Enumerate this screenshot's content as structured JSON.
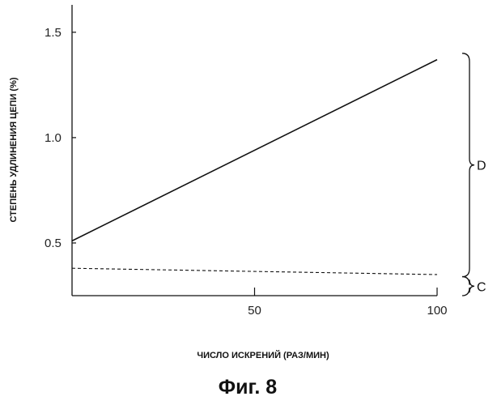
{
  "chart_data": {
    "type": "line",
    "caption": "Фиг. 8",
    "xlabel": "ЧИСЛО ИСКРЕНИЙ (РАЗ/МИН)",
    "ylabel": "СТЕПЕНЬ УДЛИНЕНИЯ ЦЕПИ (%)",
    "xlim": [
      0,
      100
    ],
    "ylim": [
      0.25,
      1.63
    ],
    "x_ticks": [
      50,
      100
    ],
    "x_tick_labels": [
      "50",
      "100"
    ],
    "y_ticks": [
      0.5,
      1.0,
      1.5
    ],
    "y_tick_labels": [
      "0.5",
      "1.0",
      "1.5"
    ],
    "grid": false,
    "series": [
      {
        "name": "D",
        "style": "solid",
        "x": [
          0,
          100
        ],
        "y": [
          0.51,
          1.37
        ]
      },
      {
        "name": "C",
        "style": "dashed",
        "x": [
          0,
          100
        ],
        "y": [
          0.38,
          0.35
        ]
      }
    ],
    "brackets": [
      {
        "label": "D",
        "from": 0.34,
        "to": 1.4
      },
      {
        "label": "C",
        "from": 0.25,
        "to": 0.34
      }
    ]
  }
}
